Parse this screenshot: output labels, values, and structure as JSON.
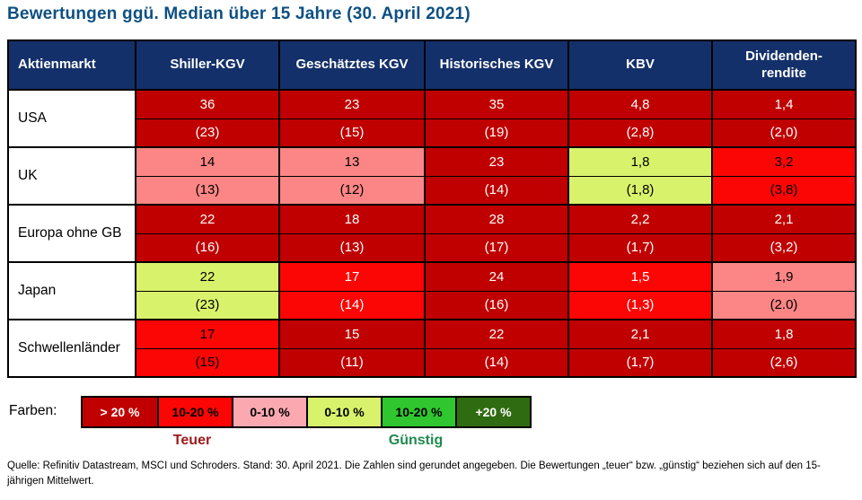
{
  "chart_data": {
    "type": "table",
    "title": "Bewertungen ggü. Median über 15 Jahre (30. April 2021)",
    "columns": [
      "Aktienmarkt",
      "Shiller-KGV",
      "Geschätztes KGV",
      "Historisches KGV",
      "KBV",
      "Dividenden-\nrendite"
    ],
    "rows": [
      {
        "market": "USA",
        "cells": [
          {
            "value": "36",
            "median": "(23)",
            "bg": "#C00000",
            "fg": "#FFFFFF"
          },
          {
            "value": "23",
            "median": "(15)",
            "bg": "#C00000",
            "fg": "#FFFFFF"
          },
          {
            "value": "35",
            "median": "(19)",
            "bg": "#C00000",
            "fg": "#FFFFFF"
          },
          {
            "value": "4,8",
            "median": "(2,8)",
            "bg": "#C00000",
            "fg": "#FFFFFF"
          },
          {
            "value": "1,4",
            "median": "(2,0)",
            "bg": "#C00000",
            "fg": "#FFFFFF"
          }
        ]
      },
      {
        "market": "UK",
        "cells": [
          {
            "value": "14",
            "median": "(13)",
            "bg": "#FB8685",
            "fg": "#000000"
          },
          {
            "value": "13",
            "median": "(12)",
            "bg": "#FB8685",
            "fg": "#000000"
          },
          {
            "value": "23",
            "median": "(14)",
            "bg": "#C00000",
            "fg": "#FFFFFF"
          },
          {
            "value": "1,8",
            "median": "(1,8)",
            "bg": "#D9F26C",
            "fg": "#000000"
          },
          {
            "value": "3,2",
            "median": "(3,8)",
            "bg": "#FB0505",
            "fg": "#000000"
          }
        ]
      },
      {
        "market": "Europa ohne GB",
        "cells": [
          {
            "value": "22",
            "median": "(16)",
            "bg": "#C00000",
            "fg": "#FFFFFF"
          },
          {
            "value": "18",
            "median": "(13)",
            "bg": "#C00000",
            "fg": "#FFFFFF"
          },
          {
            "value": "28",
            "median": "(17)",
            "bg": "#C00000",
            "fg": "#FFFFFF"
          },
          {
            "value": "2,2",
            "median": "(1,7)",
            "bg": "#C00000",
            "fg": "#FFFFFF"
          },
          {
            "value": "2,1",
            "median": "(3,2)",
            "bg": "#C00000",
            "fg": "#FFFFFF"
          }
        ]
      },
      {
        "market": "Japan",
        "cells": [
          {
            "value": "22",
            "median": "(23)",
            "bg": "#D9F26C",
            "fg": "#000000"
          },
          {
            "value": "17",
            "median": "(14)",
            "bg": "#FB0505",
            "fg": "#FFFFFF"
          },
          {
            "value": "24",
            "median": "(16)",
            "bg": "#C00000",
            "fg": "#FFFFFF"
          },
          {
            "value": "1,5",
            "median": "(1,3)",
            "bg": "#FB0505",
            "fg": "#FFFFFF"
          },
          {
            "value": "1,9",
            "median": "(2.0)",
            "bg": "#FB8685",
            "fg": "#000000"
          }
        ]
      },
      {
        "market": "Schwellenländer",
        "cells": [
          {
            "value": "17",
            "median": "(15)",
            "bg": "#FB0505",
            "fg": "#000000"
          },
          {
            "value": "15",
            "median": "(11)",
            "bg": "#C00000",
            "fg": "#FFFFFF"
          },
          {
            "value": "22",
            "median": "(14)",
            "bg": "#C00000",
            "fg": "#FFFFFF"
          },
          {
            "value": "2,1",
            "median": "(1,7)",
            "bg": "#C00000",
            "fg": "#FFFFFF"
          },
          {
            "value": "1,8",
            "median": "(2,6)",
            "bg": "#C00000",
            "fg": "#FFFFFF"
          }
        ]
      }
    ]
  },
  "legend": {
    "prefix": "Farben:",
    "items": [
      {
        "label": "> 20 %",
        "bg": "#C00000",
        "fg": "#FFFFFF"
      },
      {
        "label": "10-20 %",
        "bg": "#FB0505",
        "fg": "#000000"
      },
      {
        "label": "0-10 %",
        "bg": "#FBA8B1",
        "fg": "#000000"
      },
      {
        "label": "0-10 %",
        "bg": "#D9F26C",
        "fg": "#000000"
      },
      {
        "label": "10-20 %",
        "bg": "#2FC62F",
        "fg": "#000000"
      },
      {
        "label": "+20 %",
        "bg": "#2F6B10",
        "fg": "#FFFFFF"
      }
    ],
    "expensive_label": "Teuer",
    "cheap_label": "Günstig",
    "expensive_color": "#9C1A1C",
    "cheap_color": "#1E8A4C"
  },
  "footer": {
    "text": "Quelle: Refinitiv Datastream, MSCI und Schroders. Stand: 30. April 2021. Die Zahlen sind gerundet angegeben. Die Bewertungen „teuer“ bzw. „günstig“ beziehen sich auf den 15-jährigen Mittelwert."
  },
  "colors": {
    "title": "#0D5082",
    "header_bg": "#14306A",
    "header_fg": "#FFFFFF",
    "dark_red": "#C00000",
    "bright_red": "#FB0505",
    "pink_cell": "#FB8685",
    "legend_pink": "#FBA8B1",
    "light_green": "#D9F26C",
    "green": "#2FC62F",
    "dark_green": "#2F6B10"
  }
}
